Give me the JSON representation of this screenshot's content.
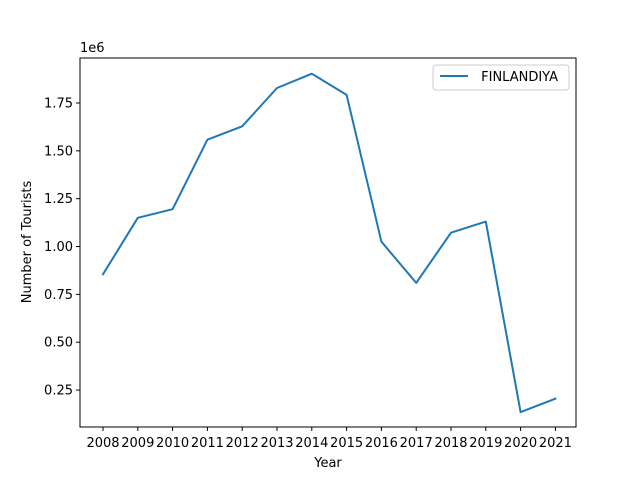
{
  "chart_data": {
    "type": "line",
    "xlabel": "Year",
    "ylabel": "Number of Tourists",
    "offset_label": "1e6",
    "x": [
      "2008",
      "2009",
      "2010",
      "2011",
      "2012",
      "2013",
      "2014",
      "2015",
      "2016",
      "2017",
      "2018",
      "2019",
      "2020",
      "2021"
    ],
    "series": [
      {
        "name": " FINLANDIYA",
        "color": "#1f77b4",
        "values": [
          855000,
          1150000,
          1195000,
          1558000,
          1628000,
          1828000,
          1903000,
          1792000,
          1025000,
          810000,
          1072000,
          1130000,
          135000,
          205000
        ]
      }
    ],
    "ylim": [
      57000,
      1985000
    ],
    "yticks": [
      0.25,
      0.5,
      0.75,
      1.0,
      1.25,
      1.5,
      1.75
    ],
    "ytick_labels": [
      "0.25",
      "0.50",
      "0.75",
      "1.00",
      "1.25",
      "1.50",
      "1.75"
    ],
    "legend_position": "top-right",
    "grid": false
  }
}
